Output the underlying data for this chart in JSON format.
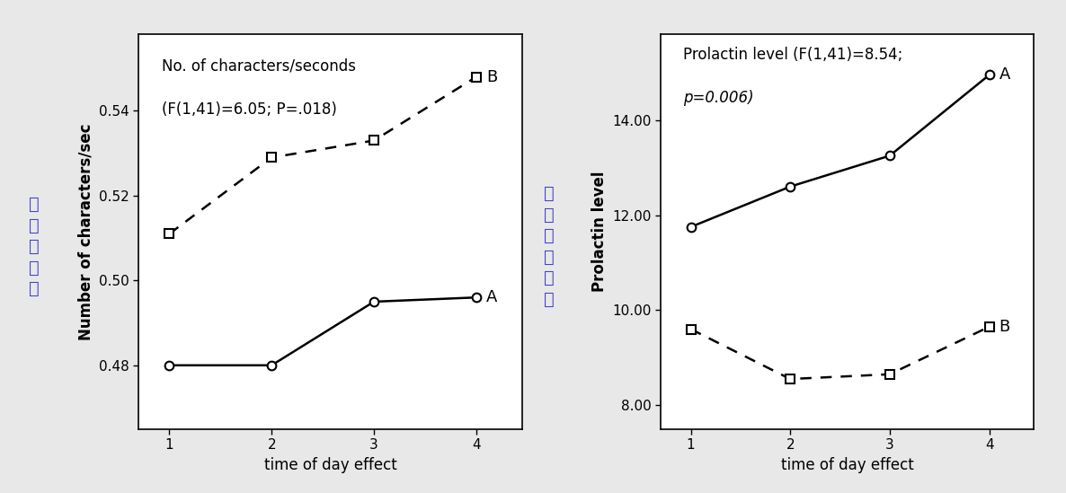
{
  "chart1": {
    "title_line1": "No. of characters/seconds",
    "title_line2": "(F(1,41)=6.05; P=.018)",
    "xlabel": "time of day effect",
    "ylabel": "Number of characters/sec",
    "ylabel_chinese": "字\n符\n数\n／\n秒",
    "x": [
      1,
      2,
      3,
      4
    ],
    "series_A": [
      0.48,
      0.48,
      0.495,
      0.496
    ],
    "series_B": [
      0.511,
      0.529,
      0.533,
      0.548
    ],
    "ylim": [
      0.465,
      0.558
    ],
    "yticks": [
      0.48,
      0.5,
      0.52,
      0.54
    ],
    "label_A": "A",
    "label_B": "B"
  },
  "chart2": {
    "title_line1": "Prolactin level (F(1,41)=8.54;",
    "title_line2": "p=0.006)",
    "xlabel": "time of day effect",
    "ylabel": "Prolactin level",
    "ylabel_chinese": "泌\n乳\n激\n素\n水\n平",
    "x": [
      1,
      2,
      3,
      4
    ],
    "series_A": [
      11.75,
      12.6,
      13.25,
      14.95
    ],
    "series_B": [
      9.6,
      8.55,
      8.65,
      9.65
    ],
    "ylim": [
      7.5,
      15.8
    ],
    "yticks": [
      8.0,
      10.0,
      12.0,
      14.0
    ],
    "label_A": "A",
    "label_B": "B"
  },
  "bg_color": "#e8e8e8",
  "plot_bg": "#ffffff",
  "line_color": "#000000",
  "chinese_color": "#4444cc",
  "title_fontsize": 12,
  "label_fontsize": 12,
  "tick_fontsize": 11,
  "annotation_fontsize": 13
}
